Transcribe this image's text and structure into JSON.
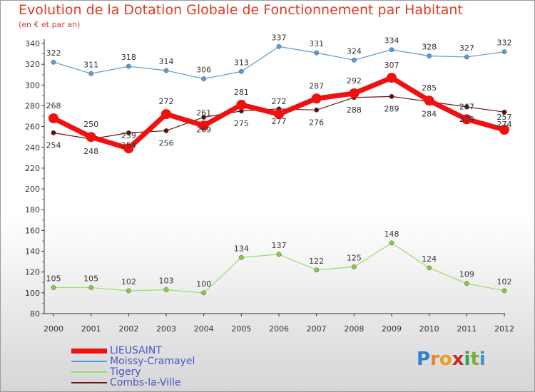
{
  "title": "Evolution de la Dotation Globale de Fonctionnement par Habitant",
  "subtitle": "(en € et par an)",
  "logo": {
    "letters": [
      "P",
      "r",
      "o",
      "x",
      "i",
      "t",
      "i"
    ],
    "colors": [
      "#2f7fd0",
      "#e8832a",
      "#e8a020",
      "#c03028",
      "#2aa84a",
      "#7ab030",
      "#3d8fd0"
    ]
  },
  "chart_data": {
    "type": "line",
    "title": "Evolution de la Dotation Globale de Fonctionnement par Habitant",
    "ylabel": "(en € et par an)",
    "x": [
      "2000",
      "2001",
      "2002",
      "2003",
      "2004",
      "2005",
      "2006",
      "2007",
      "2008",
      "2009",
      "2010",
      "2011",
      "2012"
    ],
    "ylim": [
      80,
      340
    ],
    "yticks": [
      80,
      100,
      120,
      140,
      160,
      180,
      200,
      220,
      240,
      260,
      280,
      300,
      320,
      340
    ],
    "grid": false,
    "legend": "bottom-left",
    "series": [
      {
        "name": "LIEUSAINT",
        "color": "#f01010",
        "values": [
          268,
          250,
          239,
          272,
          261,
          281,
          272,
          287,
          292,
          307,
          285,
          267,
          257
        ]
      },
      {
        "name": "Moissy-Cramayel",
        "color": "#5b9bd5",
        "values": [
          322,
          311,
          318,
          314,
          306,
          313,
          337,
          331,
          324,
          334,
          328,
          327,
          332
        ]
      },
      {
        "name": "Tigery",
        "color": "#99dd66",
        "values": [
          105,
          105,
          102,
          103,
          100,
          134,
          137,
          122,
          125,
          148,
          124,
          109,
          102
        ]
      },
      {
        "name": "Combs-la-Ville",
        "color": "#6b1515",
        "values": [
          254,
          248,
          254,
          256,
          269,
          275,
          277,
          276,
          288,
          289,
          284,
          279,
          274
        ]
      }
    ]
  }
}
